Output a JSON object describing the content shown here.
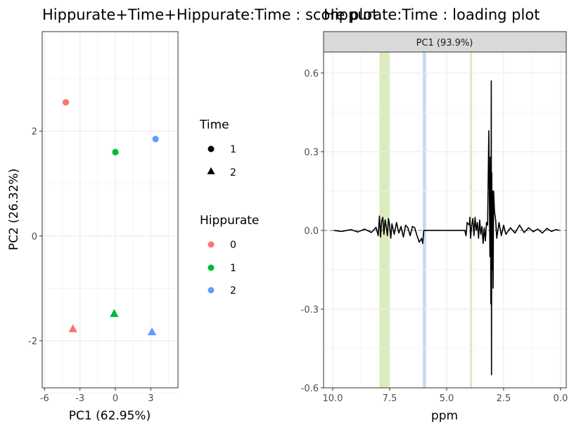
{
  "chart_data": [
    {
      "type": "scatter",
      "title": "Hippurate+Time+Hippurate:Time : score plot",
      "xlabel": "PC1 (62.95%)",
      "ylabel": "PC2 (26.32%)",
      "xlim": [
        -6.2,
        5.3
      ],
      "ylim": [
        -2.9,
        3.9
      ],
      "xticks": [
        -6,
        -3,
        0,
        3
      ],
      "xtick_labels": [
        "-6",
        "-3",
        "0",
        "3"
      ],
      "yticks": [
        -2,
        0,
        2
      ],
      "ytick_labels": [
        "-2",
        "0",
        "2"
      ],
      "grid": true,
      "points": [
        {
          "x": -4.2,
          "y": 2.55,
          "time": "1",
          "hippurate": "0"
        },
        {
          "x": 0.0,
          "y": 1.6,
          "time": "1",
          "hippurate": "1"
        },
        {
          "x": 3.4,
          "y": 1.85,
          "time": "1",
          "hippurate": "2"
        },
        {
          "x": -3.6,
          "y": -1.77,
          "time": "2",
          "hippurate": "0"
        },
        {
          "x": -0.1,
          "y": -1.48,
          "time": "2",
          "hippurate": "1"
        },
        {
          "x": 3.1,
          "y": -1.83,
          "time": "2",
          "hippurate": "2"
        }
      ],
      "legends": [
        {
          "title": "Time",
          "kind": "shape",
          "entries": [
            {
              "label": "1",
              "shape": "circle"
            },
            {
              "label": "2",
              "shape": "triangle"
            }
          ]
        },
        {
          "title": "Hippurate",
          "kind": "color",
          "entries": [
            {
              "label": "0",
              "color": "#F8766D"
            },
            {
              "label": "1",
              "color": "#00BA38"
            },
            {
              "label": "2",
              "color": "#619CFF"
            }
          ]
        }
      ]
    },
    {
      "type": "line",
      "title": "Hippurate:Time : loading plot",
      "facet_label": "PC1 (93.9%)",
      "xlabel": "ppm",
      "ylabel": "",
      "x_reversed": true,
      "xlim": [
        10.4,
        -0.25
      ],
      "ylim": [
        -0.6,
        0.68
      ],
      "xticks": [
        10.0,
        7.5,
        5.0,
        2.5,
        0.0
      ],
      "xtick_labels": [
        "10.0",
        "7.5",
        "5.0",
        "2.5",
        "0.0"
      ],
      "yticks": [
        -0.6,
        -0.3,
        0.0,
        0.3,
        0.6
      ],
      "ytick_labels": [
        "-0.6",
        "-0.3",
        "0.0",
        "0.3",
        "0.6"
      ],
      "grid": true,
      "hline": 0.0,
      "bands": [
        {
          "from": 7.95,
          "to": 7.5,
          "color": "#d6e8b0"
        },
        {
          "from": 6.05,
          "to": 5.9,
          "color": "#c3d1f2"
        },
        {
          "from": 3.98,
          "to": 3.88,
          "color": "#d6e8b0"
        }
      ],
      "x": [
        9.95,
        9.6,
        9.2,
        8.9,
        8.6,
        8.3,
        8.1,
        8.0,
        7.95,
        7.9,
        7.85,
        7.8,
        7.75,
        7.7,
        7.65,
        7.6,
        7.55,
        7.5,
        7.45,
        7.4,
        7.3,
        7.2,
        7.1,
        7.0,
        6.9,
        6.8,
        6.7,
        6.6,
        6.5,
        6.4,
        6.3,
        6.2,
        6.1,
        6.05,
        6.0,
        5.95,
        5.9,
        5.5,
        5.0,
        4.5,
        4.2,
        4.15,
        4.1,
        4.0,
        3.98,
        3.95,
        3.9,
        3.85,
        3.8,
        3.75,
        3.7,
        3.65,
        3.6,
        3.55,
        3.5,
        3.45,
        3.4,
        3.35,
        3.3,
        3.25,
        3.2,
        3.15,
        3.1,
        3.08,
        3.06,
        3.04,
        3.03,
        3.02,
        3.0,
        2.98,
        2.96,
        2.94,
        2.9,
        2.85,
        2.8,
        2.7,
        2.6,
        2.5,
        2.4,
        2.2,
        2.0,
        1.8,
        1.6,
        1.4,
        1.2,
        1.0,
        0.8,
        0.6,
        0.4,
        0.2,
        0.05
      ],
      "y": [
        0.0,
        -0.004,
        0.003,
        -0.006,
        0.005,
        -0.008,
        0.012,
        -0.02,
        0.055,
        -0.025,
        0.035,
        0.05,
        -0.015,
        0.04,
        0.015,
        -0.02,
        0.045,
        0.02,
        -0.03,
        0.025,
        -0.015,
        0.03,
        -0.01,
        0.015,
        -0.025,
        0.02,
        0.01,
        -0.02,
        0.015,
        0.01,
        -0.02,
        -0.045,
        -0.03,
        -0.05,
        0.0,
        0.0,
        0.0,
        0.0,
        0.0,
        0.0,
        0.0,
        -0.02,
        0.03,
        0.02,
        0.05,
        -0.03,
        0.02,
        0.045,
        -0.02,
        0.05,
        0.0,
        0.03,
        -0.03,
        0.04,
        -0.015,
        0.015,
        -0.05,
        0.01,
        -0.04,
        0.03,
        0.02,
        0.38,
        -0.1,
        0.28,
        -0.28,
        0.57,
        -0.55,
        0.22,
        -0.15,
        0.15,
        -0.22,
        0.15,
        0.07,
        0.04,
        -0.03,
        0.03,
        -0.02,
        0.02,
        -0.015,
        0.01,
        -0.01,
        0.02,
        -0.008,
        0.01,
        -0.005,
        0.005,
        -0.01,
        0.008,
        -0.004,
        0.003,
        0.0
      ]
    }
  ]
}
